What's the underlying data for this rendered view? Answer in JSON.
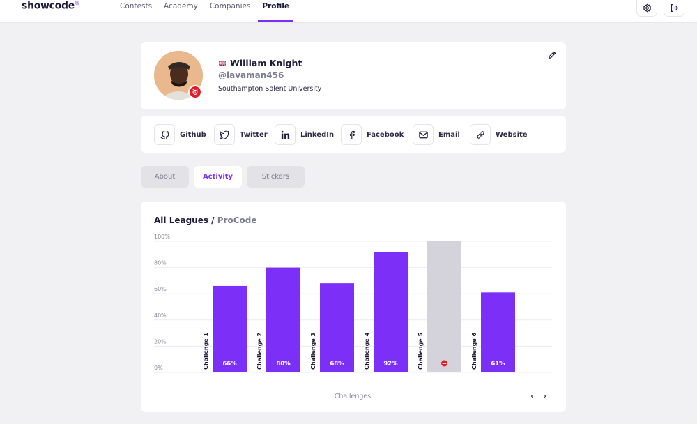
{
  "app": {
    "logo": "showcode",
    "logo_mark": "®"
  },
  "nav": {
    "items": [
      {
        "label": "Contests",
        "active": false
      },
      {
        "label": "Academy",
        "active": false
      },
      {
        "label": "Companies",
        "active": false
      },
      {
        "label": "Profile",
        "active": true
      }
    ]
  },
  "header_icons": [
    "settings-gear-icon",
    "logout-icon"
  ],
  "profile": {
    "name": "William Knight",
    "handle": "@lavaman456",
    "school": "Southampton Solent University",
    "flag": "uk-flag-icon"
  },
  "socials": [
    {
      "label": "Github",
      "icon": "github-icon"
    },
    {
      "label": "Twitter",
      "icon": "twitter-icon"
    },
    {
      "label": "LinkedIn",
      "icon": "linkedin-icon"
    },
    {
      "label": "Facebook",
      "icon": "facebook-icon"
    },
    {
      "label": "Email",
      "icon": "email-icon"
    },
    {
      "label": "Website",
      "icon": "link-icon"
    }
  ],
  "tabs": [
    {
      "label": "About",
      "active": false
    },
    {
      "label": "Activity",
      "active": true
    },
    {
      "label": "Stickers",
      "active": false
    }
  ],
  "chart_data": {
    "type": "bar",
    "title": "All Leagues",
    "subtitle": "ProCode",
    "categories": [
      "Challenge 1",
      "Challenge 2",
      "Challenge 3",
      "Challenge 4",
      "Challenge 5",
      "Challenge 6"
    ],
    "values": [
      66,
      80,
      68,
      92,
      100,
      61
    ],
    "value_labels": [
      "66%",
      "80%",
      "68%",
      "92%",
      "",
      "61%"
    ],
    "bar_colors": [
      "#7b2ff7",
      "#7b2ff7",
      "#7b2ff7",
      "#7b2ff7",
      "#d4d2da",
      "#7b2ff7"
    ],
    "failed_marker_icon": "failed-icon",
    "ylim": [
      0,
      100
    ],
    "yticks": [
      "0%",
      "20%",
      "40%",
      "60%",
      "80%",
      "100%"
    ],
    "xlabel": "Challenges",
    "grid": true
  },
  "pager": {
    "prev": "‹",
    "next": "›"
  }
}
